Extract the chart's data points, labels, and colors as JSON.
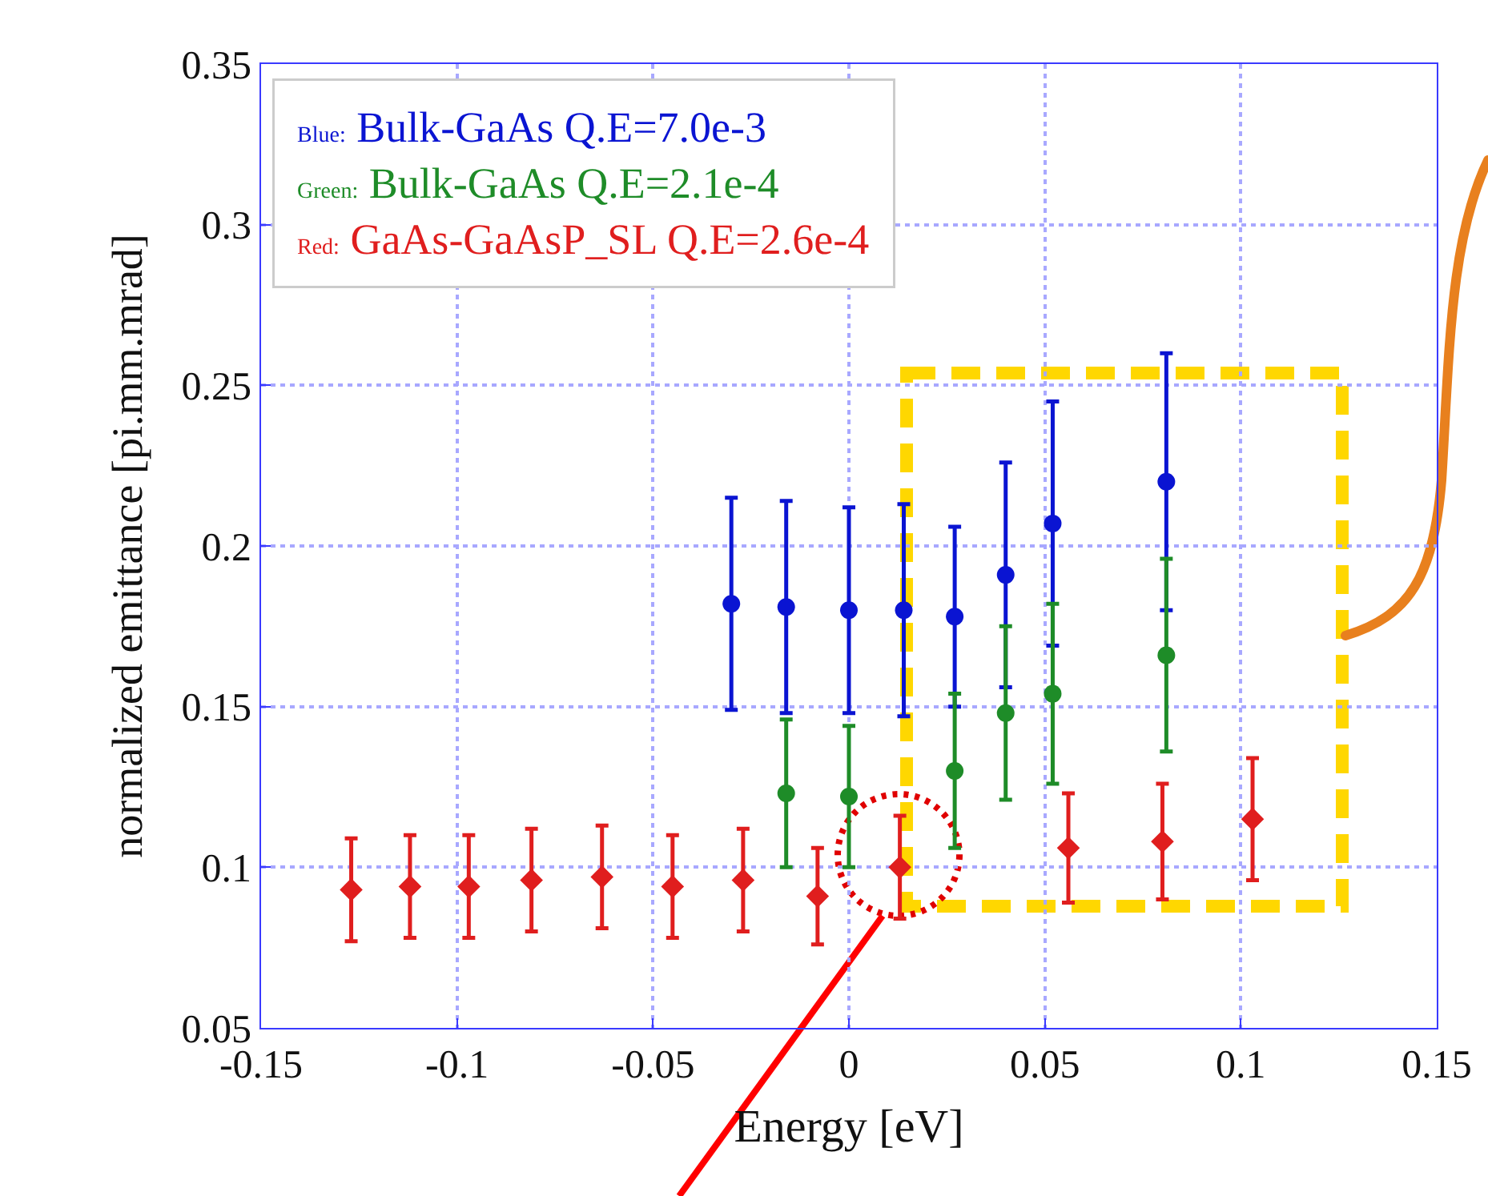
{
  "chart_data": {
    "type": "scatter",
    "xlabel": "Energy [eV]",
    "ylabel": "normalized emittance [pi.mm.mrad]",
    "xlim": [
      -0.15,
      0.15
    ],
    "xticks": [
      -0.15,
      -0.1,
      -0.05,
      0,
      0.05,
      0.1,
      0.15
    ],
    "ylim": [
      0.05,
      0.35
    ],
    "yticks": [
      0.05,
      0.1,
      0.15,
      0.2,
      0.25,
      0.3,
      0.35
    ],
    "grid": true,
    "legend": "top left",
    "series": [
      {
        "name": "Blue: Bulk-GaAs Q.E=7.0e-3",
        "color": "#0a14d2",
        "marker": "circle",
        "x": [
          -0.03,
          -0.016,
          0.0,
          0.014,
          0.027,
          0.04,
          0.052,
          0.081
        ],
        "values": [
          0.182,
          0.181,
          0.18,
          0.18,
          0.178,
          0.191,
          0.207,
          0.22
        ],
        "errors": [
          0.033,
          0.033,
          0.032,
          0.033,
          0.028,
          0.035,
          0.038,
          0.04
        ]
      },
      {
        "name": "Green: Bulk-GaAs Q.E=2.1e-4",
        "color": "#1e8c28",
        "marker": "circle",
        "x": [
          -0.016,
          0.0,
          0.014,
          0.027,
          0.04,
          0.052,
          0.081
        ],
        "values": [
          0.123,
          0.122,
          null,
          0.13,
          0.148,
          0.154,
          0.166
        ],
        "errors": [
          0.023,
          0.022,
          null,
          0.024,
          0.027,
          0.028,
          0.03
        ]
      },
      {
        "name": "Red: GaAs-GaAsP_SL Q.E=2.6e-4",
        "color": "#e01e1e",
        "marker": "diamond",
        "x": [
          -0.127,
          -0.112,
          -0.097,
          -0.081,
          -0.063,
          -0.045,
          -0.027,
          -0.008,
          0.013,
          0.056,
          0.08,
          0.103
        ],
        "values": [
          0.093,
          0.094,
          0.094,
          0.096,
          0.097,
          0.094,
          0.096,
          0.091,
          0.1,
          0.106,
          0.108,
          0.115
        ],
        "errors": [
          0.016,
          0.016,
          0.016,
          0.016,
          0.016,
          0.016,
          0.016,
          0.015,
          0.016,
          0.017,
          0.018,
          0.019
        ]
      }
    ]
  }
}
